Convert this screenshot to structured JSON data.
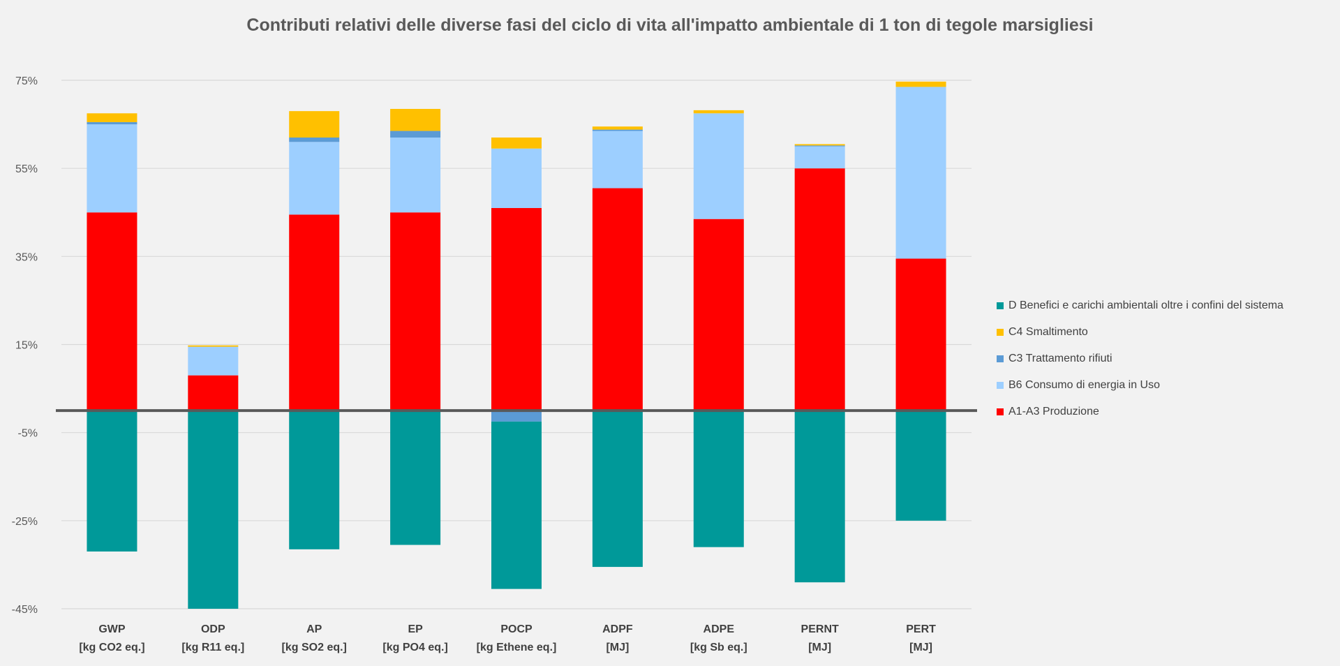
{
  "chart_data": {
    "type": "bar",
    "stacked": true,
    "title": "Contributi relativi delle diverse fasi del ciclo di vita all'impatto ambientale di 1 ton di tegole marsigliesi",
    "categories": [
      [
        "GWP",
        "[kg CO2 eq.]"
      ],
      [
        "ODP",
        "[kg R11 eq.]"
      ],
      [
        "AP",
        "[kg SO2 eq.]"
      ],
      [
        "EP",
        "[kg PO4 eq.]"
      ],
      [
        "POCP",
        "[kg Ethene eq.]"
      ],
      [
        "ADPF",
        "[MJ]"
      ],
      [
        "ADPE",
        "[kg Sb eq.]"
      ],
      [
        "PERNT",
        "[MJ]"
      ],
      [
        "PERT",
        "[MJ]"
      ]
    ],
    "ylim": [
      -45,
      80
    ],
    "yticks": [
      75,
      55,
      35,
      15,
      -5,
      -25,
      -45
    ],
    "ytick_labels": [
      "75%",
      "55%",
      "35%",
      "15%",
      "-5%",
      "-25%",
      "-45%"
    ],
    "grid": true,
    "legend_position": "right",
    "series": [
      {
        "name": "A1-A3 Produzione",
        "color": "#ff0000",
        "values": [
          45,
          8,
          44.5,
          45,
          46,
          50.5,
          43.5,
          55,
          34.5
        ]
      },
      {
        "name": "B6 Consumo di energia in Uso",
        "color": "#9dcfff",
        "values": [
          20,
          6.5,
          16.5,
          17,
          13.5,
          13,
          24,
          5,
          39
        ]
      },
      {
        "name": "C3 Trattamento rifiuti",
        "color": "#5b9bd5",
        "values": [
          0.5,
          0,
          1,
          1.5,
          -2.5,
          0.3,
          0,
          0.2,
          0
        ]
      },
      {
        "name": "C4 Smaltimento",
        "color": "#ffc000",
        "values": [
          2,
          0.3,
          6,
          5,
          2.5,
          0.7,
          0.7,
          0.3,
          1.2
        ]
      },
      {
        "name": "D Benefici e carichi ambientali oltre i confini del sistema",
        "color": "#009999",
        "values": [
          -32,
          -45,
          -31.5,
          -30.5,
          -38,
          -35.5,
          -31,
          -39,
          -25
        ]
      }
    ],
    "legend_order": [
      4,
      3,
      2,
      1,
      0
    ]
  }
}
